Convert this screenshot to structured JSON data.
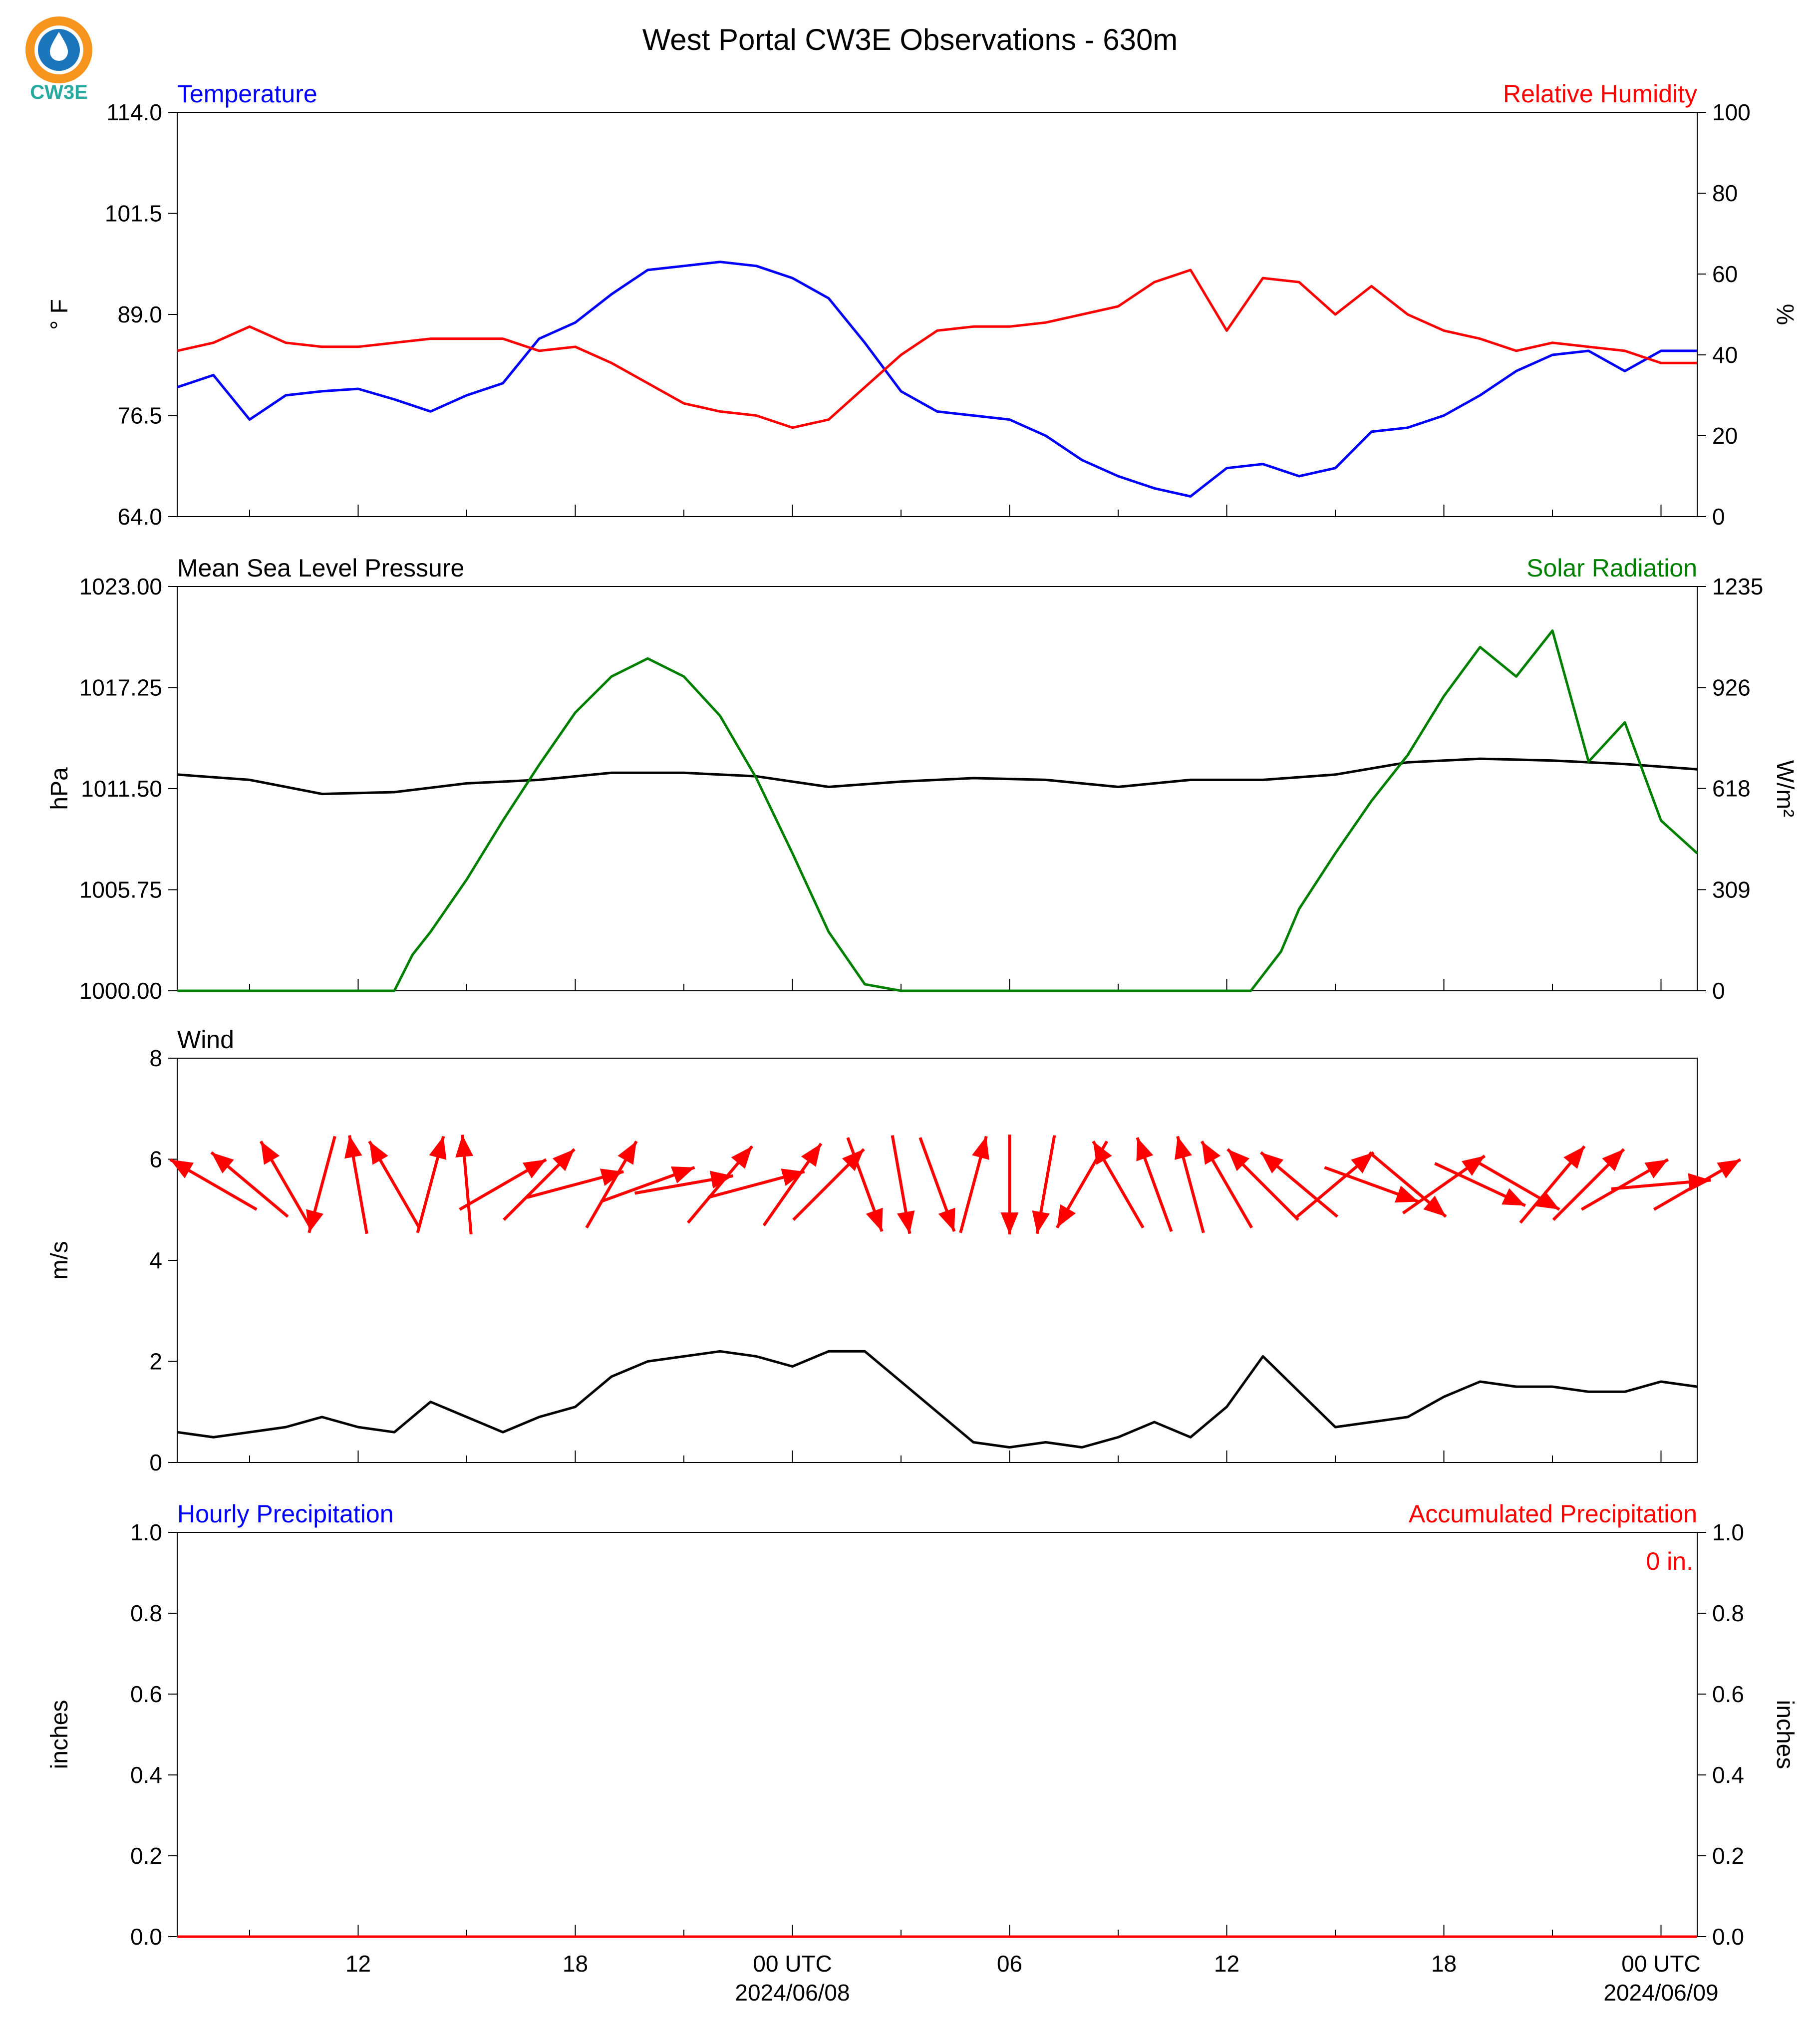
{
  "title": "West Portal CW3E Observations - 630m",
  "logo": {
    "text": "CW3E",
    "colors": {
      "sun": "#f7941d",
      "water": "#1b75bb",
      "text": "#27a9a0"
    }
  },
  "x_axis": {
    "start": "2024-06-07T07:00Z",
    "end": "2024-06-09T01:00Z",
    "major_ticks": [
      {
        "time": "2024-06-07T12:00Z",
        "label": "12",
        "date": ""
      },
      {
        "time": "2024-06-07T18:00Z",
        "label": "18",
        "date": ""
      },
      {
        "time": "2024-06-08T00:00Z",
        "label": "00 UTC",
        "date": "2024/06/08"
      },
      {
        "time": "2024-06-08T06:00Z",
        "label": "06",
        "date": ""
      },
      {
        "time": "2024-06-08T12:00Z",
        "label": "12",
        "date": ""
      },
      {
        "time": "2024-06-08T18:00Z",
        "label": "18",
        "date": ""
      },
      {
        "time": "2024-06-09T00:00Z",
        "label": "00 UTC",
        "date": "2024/06/09"
      }
    ],
    "minor_tick_hours": 3
  },
  "chart_data": [
    {
      "type": "line",
      "title_left": "Temperature",
      "title_right": "Relative Humidity",
      "ylabel_left": "° F",
      "ylabel_right": "%",
      "ylim_left": [
        64.0,
        114.0
      ],
      "ylim_right": [
        0,
        100
      ],
      "yticks_left": [
        "64.0",
        "76.5",
        "89.0",
        "101.5",
        "114.0"
      ],
      "yticks_right": [
        "0",
        "20",
        "40",
        "60",
        "80",
        "100"
      ],
      "colors": {
        "left": "#0000ff",
        "right": "#ff0000"
      },
      "series": [
        {
          "axis": "left",
          "x": [
            "2024-06-07T07:00Z",
            "2024-06-07T08:00Z",
            "2024-06-07T09:00Z",
            "2024-06-07T10:00Z",
            "2024-06-07T11:00Z",
            "2024-06-07T12:00Z",
            "2024-06-07T13:00Z",
            "2024-06-07T14:00Z",
            "2024-06-07T15:00Z",
            "2024-06-07T16:00Z",
            "2024-06-07T17:00Z",
            "2024-06-07T18:00Z",
            "2024-06-07T19:00Z",
            "2024-06-07T20:00Z",
            "2024-06-07T21:00Z",
            "2024-06-07T22:00Z",
            "2024-06-07T23:00Z",
            "2024-06-08T00:00Z",
            "2024-06-08T01:00Z",
            "2024-06-08T02:00Z",
            "2024-06-08T03:00Z",
            "2024-06-08T04:00Z",
            "2024-06-08T05:00Z",
            "2024-06-08T06:00Z",
            "2024-06-08T07:00Z",
            "2024-06-08T08:00Z",
            "2024-06-08T09:00Z",
            "2024-06-08T10:00Z",
            "2024-06-08T11:00Z",
            "2024-06-08T12:00Z",
            "2024-06-08T13:00Z",
            "2024-06-08T14:00Z",
            "2024-06-08T15:00Z",
            "2024-06-08T16:00Z",
            "2024-06-08T17:00Z",
            "2024-06-08T18:00Z",
            "2024-06-08T19:00Z",
            "2024-06-08T20:00Z",
            "2024-06-08T21:00Z",
            "2024-06-08T22:00Z",
            "2024-06-08T23:00Z",
            "2024-06-09T00:00Z",
            "2024-06-09T01:00Z"
          ],
          "values": [
            80.0,
            81.5,
            76.0,
            79.0,
            79.5,
            79.8,
            78.5,
            77.0,
            79.0,
            80.5,
            86.0,
            88.0,
            91.5,
            94.5,
            95.0,
            95.5,
            95.0,
            93.5,
            91.0,
            85.5,
            79.5,
            77.0,
            76.5,
            76.0,
            74.0,
            71.0,
            69.0,
            67.5,
            66.5,
            70.0,
            70.5,
            69.0,
            70.0,
            74.5,
            75.0,
            76.5,
            79.0,
            82.0,
            84.0,
            84.5,
            82.0,
            84.5,
            84.5
          ]
        },
        {
          "axis": "right",
          "x": [
            "2024-06-07T07:00Z",
            "2024-06-07T08:00Z",
            "2024-06-07T09:00Z",
            "2024-06-07T10:00Z",
            "2024-06-07T11:00Z",
            "2024-06-07T12:00Z",
            "2024-06-07T13:00Z",
            "2024-06-07T14:00Z",
            "2024-06-07T15:00Z",
            "2024-06-07T16:00Z",
            "2024-06-07T17:00Z",
            "2024-06-07T18:00Z",
            "2024-06-07T19:00Z",
            "2024-06-07T20:00Z",
            "2024-06-07T21:00Z",
            "2024-06-07T22:00Z",
            "2024-06-07T23:00Z",
            "2024-06-08T00:00Z",
            "2024-06-08T01:00Z",
            "2024-06-08T02:00Z",
            "2024-06-08T03:00Z",
            "2024-06-08T04:00Z",
            "2024-06-08T05:00Z",
            "2024-06-08T06:00Z",
            "2024-06-08T07:00Z",
            "2024-06-08T08:00Z",
            "2024-06-08T09:00Z",
            "2024-06-08T10:00Z",
            "2024-06-08T11:00Z",
            "2024-06-08T12:00Z",
            "2024-06-08T13:00Z",
            "2024-06-08T14:00Z",
            "2024-06-08T15:00Z",
            "2024-06-08T16:00Z",
            "2024-06-08T17:00Z",
            "2024-06-08T18:00Z",
            "2024-06-08T19:00Z",
            "2024-06-08T20:00Z",
            "2024-06-08T21:00Z",
            "2024-06-08T22:00Z",
            "2024-06-08T23:00Z",
            "2024-06-09T00:00Z",
            "2024-06-09T01:00Z"
          ],
          "values": [
            41,
            43,
            47,
            43,
            42,
            42,
            43,
            44,
            44,
            44,
            41,
            42,
            38,
            33,
            28,
            26,
            25,
            22,
            24,
            32,
            40,
            46,
            47,
            47,
            48,
            50,
            52,
            58,
            61,
            46,
            59,
            58,
            50,
            57,
            50,
            46,
            44,
            41,
            43,
            42,
            41,
            38,
            38
          ]
        }
      ]
    },
    {
      "type": "line",
      "title_left": "Mean Sea Level Pressure",
      "title_right": "Solar Radiation",
      "ylabel_left": "hPa",
      "ylabel_right": "W/m²",
      "ylim_left": [
        1000.0,
        1023.0
      ],
      "ylim_right": [
        0,
        1235
      ],
      "yticks_left": [
        "1000.00",
        "1005.75",
        "1011.50",
        "1017.25",
        "1023.00"
      ],
      "yticks_right": [
        "0",
        "309",
        "618",
        "926",
        "1235"
      ],
      "colors": {
        "left": "#000000",
        "right": "#008000"
      },
      "series": [
        {
          "axis": "left",
          "x": [
            "2024-06-07T07:00Z",
            "2024-06-07T09:00Z",
            "2024-06-07T11:00Z",
            "2024-06-07T13:00Z",
            "2024-06-07T15:00Z",
            "2024-06-07T17:00Z",
            "2024-06-07T19:00Z",
            "2024-06-07T21:00Z",
            "2024-06-07T23:00Z",
            "2024-06-08T01:00Z",
            "2024-06-08T03:00Z",
            "2024-06-08T05:00Z",
            "2024-06-08T07:00Z",
            "2024-06-08T09:00Z",
            "2024-06-08T11:00Z",
            "2024-06-08T13:00Z",
            "2024-06-08T15:00Z",
            "2024-06-08T17:00Z",
            "2024-06-08T19:00Z",
            "2024-06-08T21:00Z",
            "2024-06-08T23:00Z",
            "2024-06-09T01:00Z"
          ],
          "values": [
            1012.3,
            1012.0,
            1011.2,
            1011.3,
            1011.8,
            1012.0,
            1012.4,
            1012.4,
            1012.2,
            1011.6,
            1011.9,
            1012.1,
            1012.0,
            1011.6,
            1012.0,
            1012.0,
            1012.3,
            1013.0,
            1013.2,
            1013.1,
            1012.9,
            1012.6
          ]
        },
        {
          "axis": "right",
          "x": [
            "2024-06-07T07:00Z",
            "2024-06-07T13:00Z",
            "2024-06-07T13:30Z",
            "2024-06-07T14:00Z",
            "2024-06-07T15:00Z",
            "2024-06-07T16:00Z",
            "2024-06-07T17:00Z",
            "2024-06-07T18:00Z",
            "2024-06-07T19:00Z",
            "2024-06-07T20:00Z",
            "2024-06-07T21:00Z",
            "2024-06-07T22:00Z",
            "2024-06-07T23:00Z",
            "2024-06-08T00:00Z",
            "2024-06-08T01:00Z",
            "2024-06-08T02:00Z",
            "2024-06-08T03:00Z",
            "2024-06-08T03:20Z",
            "2024-06-08T12:40Z",
            "2024-06-08T13:30Z",
            "2024-06-08T14:00Z",
            "2024-06-08T15:00Z",
            "2024-06-08T16:00Z",
            "2024-06-08T17:00Z",
            "2024-06-08T18:00Z",
            "2024-06-08T19:00Z",
            "2024-06-08T20:00Z",
            "2024-06-08T21:00Z",
            "2024-06-08T22:00Z",
            "2024-06-08T23:00Z",
            "2024-06-09T00:00Z",
            "2024-06-09T01:00Z"
          ],
          "values": [
            0,
            0,
            110,
            180,
            340,
            520,
            690,
            850,
            960,
            1015,
            960,
            840,
            650,
            420,
            180,
            20,
            0,
            0,
            0,
            120,
            250,
            420,
            580,
            720,
            900,
            1050,
            960,
            1100,
            700,
            820,
            520,
            420
          ]
        }
      ]
    },
    {
      "type": "line",
      "title_left": "Wind",
      "ylabel_left": "m/s",
      "ylim_left": [
        0,
        8
      ],
      "yticks_left": [
        "0",
        "2",
        "4",
        "6",
        "8"
      ],
      "colors": {
        "speed": "#000000",
        "barbs": "#ff0000"
      },
      "series": [
        {
          "axis": "left",
          "x": [
            "2024-06-07T07:00Z",
            "2024-06-07T08:00Z",
            "2024-06-07T09:00Z",
            "2024-06-07T10:00Z",
            "2024-06-07T11:00Z",
            "2024-06-07T12:00Z",
            "2024-06-07T13:00Z",
            "2024-06-07T14:00Z",
            "2024-06-07T15:00Z",
            "2024-06-07T16:00Z",
            "2024-06-07T17:00Z",
            "2024-06-07T18:00Z",
            "2024-06-07T19:00Z",
            "2024-06-07T20:00Z",
            "2024-06-07T21:00Z",
            "2024-06-07T22:00Z",
            "2024-06-07T23:00Z",
            "2024-06-08T00:00Z",
            "2024-06-08T01:00Z",
            "2024-06-08T02:00Z",
            "2024-06-08T03:00Z",
            "2024-06-08T04:00Z",
            "2024-06-08T05:00Z",
            "2024-06-08T06:00Z",
            "2024-06-08T07:00Z",
            "2024-06-08T08:00Z",
            "2024-06-08T09:00Z",
            "2024-06-08T10:00Z",
            "2024-06-08T11:00Z",
            "2024-06-08T12:00Z",
            "2024-06-08T13:00Z",
            "2024-06-08T14:00Z",
            "2024-06-08T15:00Z",
            "2024-06-08T16:00Z",
            "2024-06-08T17:00Z",
            "2024-06-08T18:00Z",
            "2024-06-08T19:00Z",
            "2024-06-08T20:00Z",
            "2024-06-08T21:00Z",
            "2024-06-08T22:00Z",
            "2024-06-08T23:00Z",
            "2024-06-09T00:00Z",
            "2024-06-09T01:00Z"
          ],
          "values": [
            0.6,
            0.5,
            0.6,
            0.7,
            0.9,
            0.7,
            0.6,
            1.2,
            0.9,
            0.6,
            0.9,
            1.1,
            1.7,
            2.0,
            2.1,
            2.2,
            2.1,
            1.9,
            2.2,
            2.2,
            1.6,
            1.0,
            0.4,
            0.3,
            0.4,
            0.3,
            0.5,
            0.8,
            0.5,
            1.1,
            2.1,
            1.4,
            0.7,
            0.8,
            0.9,
            1.3,
            1.6,
            1.5,
            1.5,
            1.4,
            1.4,
            1.6,
            1.5
          ]
        }
      ],
      "wind_arrows": {
        "time_step_hours": 1,
        "start": "2024-06-07T08:00Z",
        "speed_ms": [
          5.5,
          5.5,
          5.5,
          5.5,
          5.5,
          5.5,
          5.5,
          5.5,
          5.5,
          5.5,
          5.5,
          5.5,
          5.5,
          5.5,
          5.5,
          5.5,
          5.5,
          5.5,
          5.5,
          5.5,
          5.5,
          5.5,
          5.5,
          5.5,
          5.5,
          5.5,
          5.5,
          5.5,
          5.5,
          5.5,
          5.5,
          5.5,
          5.5,
          5.5,
          5.5,
          5.5,
          5.5,
          5.5,
          5.5,
          5.5,
          5.5,
          5.5
        ],
        "toward_deg": [
          300,
          310,
          330,
          195,
          350,
          330,
          15,
          355,
          60,
          45,
          75,
          30,
          70,
          80,
          40,
          75,
          35,
          45,
          160,
          170,
          160,
          15,
          180,
          190,
          210,
          330,
          340,
          345,
          330,
          315,
          310,
          50,
          110,
          130,
          55,
          115,
          120,
          40,
          45,
          60,
          85,
          60
        ]
      }
    },
    {
      "type": "line",
      "title_left": "Hourly Precipitation",
      "title_right": "Accumulated Precipitation",
      "ylabel_left": "inches",
      "ylabel_right": "inches",
      "ylim_left": [
        0.0,
        1.0
      ],
      "ylim_right": [
        0.0,
        1.0
      ],
      "yticks_left": [
        "0.0",
        "0.2",
        "0.4",
        "0.6",
        "0.8",
        "1.0"
      ],
      "yticks_right": [
        "0.0",
        "0.2",
        "0.4",
        "0.6",
        "0.8",
        "1.0"
      ],
      "colors": {
        "left": "#0000ff",
        "right": "#ff0000"
      },
      "annotation": "0 in.",
      "series": [
        {
          "axis": "left",
          "x": [
            "2024-06-07T07:00Z",
            "2024-06-09T01:00Z"
          ],
          "values": [
            0.0,
            0.0
          ]
        },
        {
          "axis": "right",
          "x": [
            "2024-06-07T07:00Z",
            "2024-06-09T01:00Z"
          ],
          "values": [
            0.0,
            0.0
          ]
        }
      ]
    }
  ]
}
